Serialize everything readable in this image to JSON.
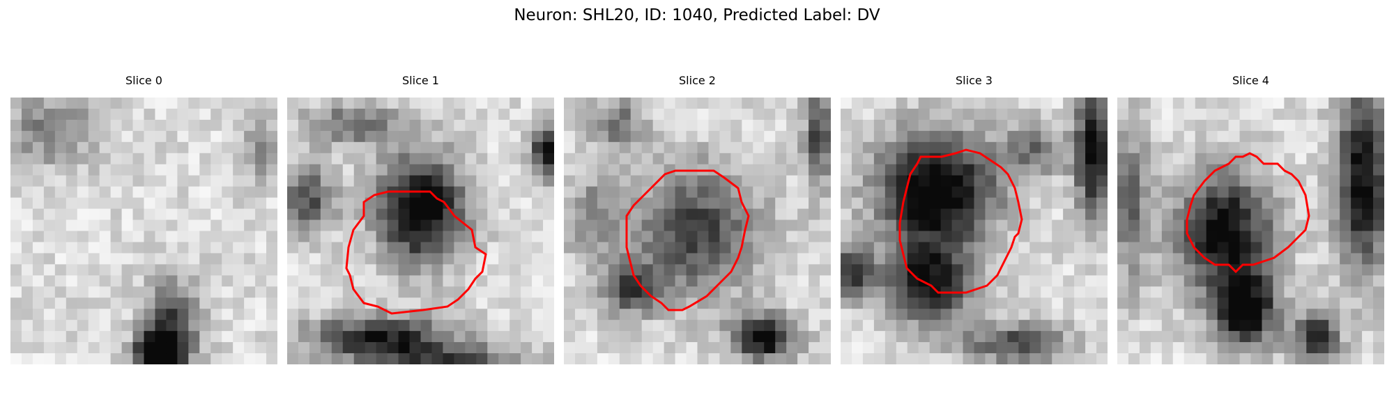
{
  "figure": {
    "title": "Neuron: SHL20, ID: 1040, Predicted Label: DV"
  },
  "panels": [
    {
      "title": "Slice 0",
      "has_contour": false
    },
    {
      "title": "Slice 1",
      "has_contour": true
    },
    {
      "title": "Slice 2",
      "has_contour": true
    },
    {
      "title": "Slice 3",
      "has_contour": true
    },
    {
      "title": "Slice 4",
      "has_contour": true
    }
  ],
  "colors": {
    "contour": "#ff0000",
    "image_light": "#e6e6e6",
    "image_dark": "#0a0a0a"
  }
}
